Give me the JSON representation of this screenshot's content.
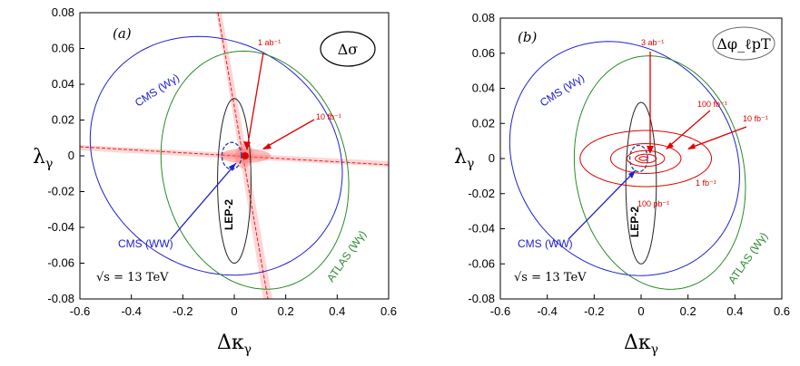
{
  "chart_data": [
    {
      "type": "scatter",
      "panel": "(a)",
      "observable": "Δσ",
      "xlabel": "Δκ_γ",
      "ylabel": "λ_γ",
      "xlim": [
        -0.6,
        0.6
      ],
      "ylim": [
        -0.08,
        0.08
      ],
      "xticks": [
        "-0.6",
        "-0.4",
        "-0.2",
        "0",
        "0.2",
        "0.4",
        "0.6"
      ],
      "yticks": [
        "0.08",
        "0.06",
        "0.04",
        "0.02",
        "0",
        "-0.02",
        "-0.04",
        "-0.06",
        "-0.08"
      ],
      "energy_label": "√s = 13 TeV",
      "contours": [
        {
          "name": "CMS (Wγ)",
          "color": "#2020d0",
          "center": [
            -0.07,
            0.0
          ],
          "semi_axes": [
            0.49,
            0.066
          ],
          "tilt": -0.16
        },
        {
          "name": "ATLAS (Wγ)",
          "color": "#2a8a2a",
          "center": [
            0.08,
            -0.008
          ],
          "semi_axes": [
            0.365,
            0.066
          ],
          "tilt": -0.14
        },
        {
          "name": "LEP-2",
          "color": "#222222",
          "center": [
            0.0,
            -0.014
          ],
          "semi_axes": [
            0.065,
            0.046
          ],
          "tilt": 0.0
        },
        {
          "name": "CMS (WW)",
          "color": "#2040a0",
          "center": [
            -0.01,
            0.0
          ],
          "semi_axes": [
            0.038,
            0.0075
          ],
          "tilt": 0.0
        }
      ],
      "annotations": [
        {
          "text": "CMS (WW)",
          "color": "#2020d0"
        },
        {
          "text": "1 ab⁻¹",
          "color": "#e00000"
        },
        {
          "text": "10 fb⁻¹",
          "color": "#e00000"
        }
      ],
      "contour_labels": [
        "CMS (Wγ)",
        "ATLAS (Wγ)",
        "LEP-2"
      ]
    },
    {
      "type": "scatter",
      "panel": "(b)",
      "observable": "Δφ_ℓpT",
      "xlabel": "Δκ_γ",
      "ylabel": "λ_γ",
      "xlim": [
        -0.6,
        0.6
      ],
      "ylim": [
        -0.08,
        0.08
      ],
      "xticks": [
        "-0.6",
        "-0.4",
        "-0.2",
        "0",
        "0.2",
        "0.4",
        "0.6"
      ],
      "yticks": [
        "0.08",
        "0.06",
        "0.04",
        "0.02",
        "0",
        "-0.02",
        "-0.04",
        "-0.06",
        "-0.08"
      ],
      "energy_label": "√s = 13 TeV",
      "contours": [
        {
          "name": "CMS (Wγ)",
          "color": "#2020d0",
          "center": [
            -0.07,
            0.0
          ],
          "semi_axes": [
            0.49,
            0.066
          ],
          "tilt": -0.16
        },
        {
          "name": "ATLAS (Wγ)",
          "color": "#2a8a2a",
          "center": [
            0.08,
            -0.008
          ],
          "semi_axes": [
            0.365,
            0.066
          ],
          "tilt": -0.14
        },
        {
          "name": "LEP-2",
          "color": "#222222",
          "center": [
            0.0,
            -0.014
          ],
          "semi_axes": [
            0.065,
            0.046
          ],
          "tilt": 0.0
        },
        {
          "name": "CMS (WW)",
          "color": "#2040a0",
          "center": [
            -0.01,
            0.0
          ],
          "semi_axes": [
            0.038,
            0.0075
          ],
          "tilt": 0.0
        },
        {
          "name": "100 pb⁻¹",
          "color": "#e00000",
          "center": [
            0.02,
            0.0
          ],
          "semi_axes": [
            0.28,
            0.016
          ]
        },
        {
          "name": "10 fb⁻¹",
          "color": "#e00000",
          "center": [
            0.02,
            0.0
          ],
          "semi_axes": [
            0.15,
            0.0085
          ]
        },
        {
          "name": "1 fb⁻¹",
          "color": "#e00000",
          "center": [
            0.02,
            0.0
          ],
          "semi_axes": [
            0.08,
            0.0045
          ]
        },
        {
          "name": "100 fb⁻¹",
          "color": "#e00000",
          "center": [
            0.02,
            0.0
          ],
          "semi_axes": [
            0.045,
            0.0025
          ]
        },
        {
          "name": "3 ab⁻¹",
          "color": "#e00000",
          "center": [
            0.01,
            0.0
          ],
          "semi_axes": [
            0.018,
            0.0011
          ]
        }
      ],
      "annotations": [
        {
          "text": "CMS (WW)",
          "color": "#2020d0"
        },
        {
          "text": "3 ab⁻¹",
          "color": "#e00000"
        },
        {
          "text": "100 fb⁻¹",
          "color": "#e00000"
        },
        {
          "text": "10 fb⁻¹",
          "color": "#e00000"
        },
        {
          "text": "1 fb⁻¹",
          "color": "#e00000"
        },
        {
          "text": "100 pb⁻¹",
          "color": "#e00000"
        }
      ],
      "contour_labels": [
        "CMS (Wγ)",
        "ATLAS (Wγ)",
        "LEP-2"
      ]
    }
  ]
}
